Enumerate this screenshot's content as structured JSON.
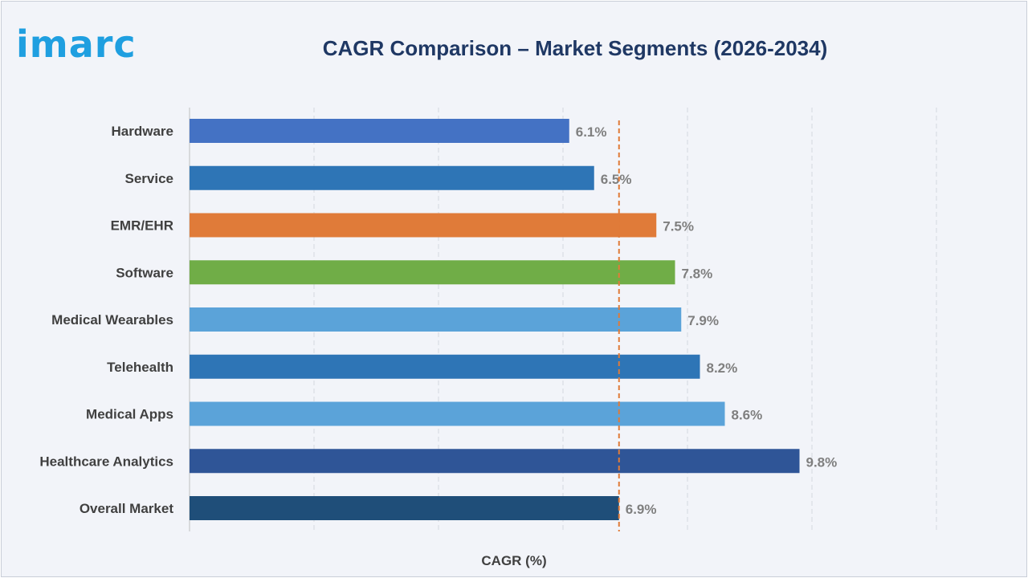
{
  "logo": {
    "text": "imarc",
    "color": "#1f9fe0"
  },
  "chart_data": {
    "type": "bar",
    "orientation": "horizontal",
    "title": "CAGR Comparison – Market Segments (2026-2034)",
    "xlabel": "CAGR (%)",
    "ylabel": "",
    "xlim": [
      0,
      12
    ],
    "grid": true,
    "legend": "none",
    "categories": [
      "Hardware",
      "Service",
      "EMR/EHR",
      "Software",
      "Medical Wearables",
      "Telehealth",
      "Medical Apps",
      "Healthcare Analytics",
      "Overall Market"
    ],
    "values": [
      6.1,
      6.5,
      7.5,
      7.8,
      7.9,
      8.2,
      8.6,
      9.8,
      6.9
    ],
    "value_labels": [
      "6.1%",
      "6.5%",
      "7.5%",
      "7.8%",
      "7.9%",
      "8.2%",
      "8.6%",
      "9.8%",
      "6.9%"
    ],
    "colors": [
      "#4472c4",
      "#2e75b6",
      "#e07b39",
      "#70ad47",
      "#5ba3d9",
      "#2e75b6",
      "#5ba3d9",
      "#2f5597",
      "#1f4e79"
    ],
    "reference_line": {
      "value": 6.9,
      "style": "dashed",
      "color": "#e07b39"
    }
  }
}
